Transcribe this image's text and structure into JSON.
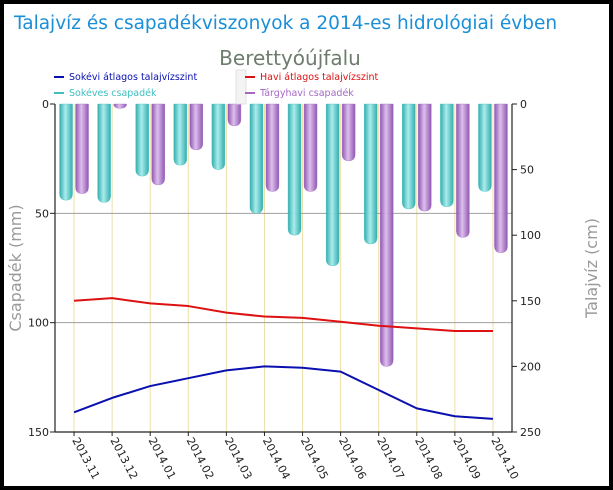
{
  "chart_data": {
    "type": "bar",
    "title": "Talajvíz és csapadékviszonyok a 2014-es hidrológiai évben",
    "subtitle": "Berettyóújfalu",
    "ylabel": "Csapadék (mm)",
    "y2label": "Talajvíz (cm)",
    "ylim": [
      0,
      150
    ],
    "y2lim": [
      0,
      250
    ],
    "y_ticks": [
      "0",
      "50",
      "100",
      "150"
    ],
    "y2_ticks": [
      "0",
      "50",
      "100",
      "150",
      "200",
      "250"
    ],
    "y_inverted": true,
    "grid": true,
    "legend_position": "top",
    "categories": [
      "2013.11",
      "2013.12",
      "2014.01",
      "2014.02",
      "2014.03",
      "2014.04",
      "2014.05",
      "2014.06",
      "2014.07",
      "2014.08",
      "2014.09",
      "2014.10"
    ],
    "series": [
      {
        "name": "Sokévi átlagos talajvízszint",
        "kind": "line",
        "axis": "right",
        "color": "#0a10b0",
        "values": [
          235,
          224,
          215,
          209,
          203,
          200,
          201,
          204,
          218,
          232,
          238,
          240
        ]
      },
      {
        "name": "Havi átlagos talajvízszint",
        "kind": "line",
        "axis": "right",
        "color": "#dd1111",
        "values": [
          150,
          148,
          152,
          154,
          159,
          162,
          163,
          166,
          169,
          171,
          173,
          173
        ]
      },
      {
        "name": "Sokéves csapadék",
        "kind": "bar",
        "axis": "left",
        "color": "#3fbfbf",
        "values": [
          44,
          45,
          33,
          28,
          30,
          50,
          60,
          74,
          64,
          48,
          47,
          40
        ]
      },
      {
        "name": "Tárgyhavi csapadék",
        "kind": "bar",
        "axis": "left",
        "color": "#a569c4",
        "values": [
          41,
          2,
          37,
          21,
          10,
          40,
          40,
          26,
          120,
          49,
          61,
          68
        ]
      }
    ]
  }
}
